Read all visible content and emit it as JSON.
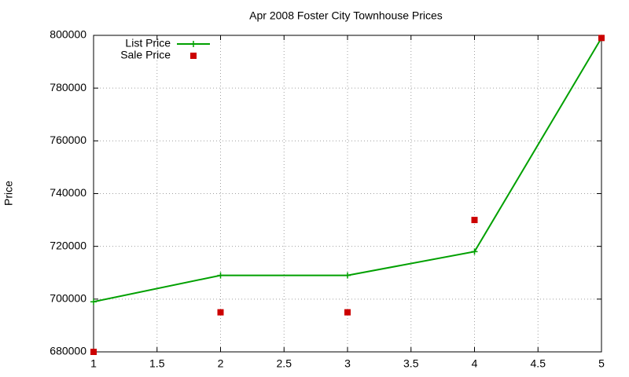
{
  "chart_data": {
    "type": "line",
    "title": "Apr 2008 Foster City Townhouse Prices",
    "ylabel": "Price",
    "x": [
      1,
      2,
      3,
      4,
      5
    ],
    "series": [
      {
        "name": "List Price",
        "color": "#00a000",
        "marker": "plus",
        "line": true,
        "values": [
          699000,
          709000,
          709000,
          718000,
          799000
        ]
      },
      {
        "name": "Sale Price",
        "color": "#cc0000",
        "marker": "square",
        "line": false,
        "values": [
          680000,
          695000,
          695000,
          730000,
          799000
        ]
      }
    ],
    "xlim": [
      1,
      5
    ],
    "xticks": [
      1,
      1.5,
      2,
      2.5,
      3,
      3.5,
      4,
      4.5,
      5
    ],
    "ylim": [
      680000,
      800000
    ],
    "yticks": [
      680000,
      700000,
      720000,
      740000,
      760000,
      780000,
      800000
    ],
    "grid": true,
    "legend": "top-left"
  }
}
